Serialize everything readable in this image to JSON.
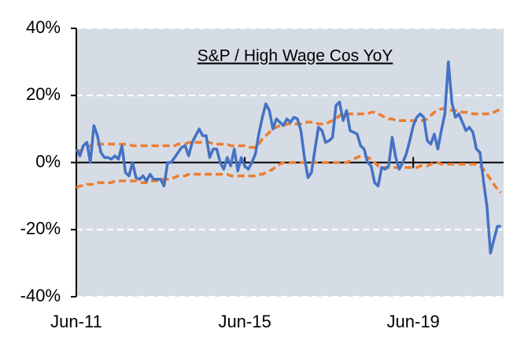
{
  "chart_data": {
    "type": "line",
    "title": "S&P / High Wage Cos YoY",
    "categories": [
      "Jun-11",
      null,
      null,
      null,
      null,
      null,
      null,
      null,
      null,
      null,
      null,
      null,
      null,
      null,
      null,
      null,
      null,
      null,
      null,
      null,
      null,
      null,
      null,
      null,
      null,
      null,
      null,
      null,
      null,
      null,
      null,
      null,
      null,
      null,
      null,
      null,
      null,
      null,
      null,
      null,
      null,
      null,
      null,
      null,
      null,
      null,
      null,
      null,
      "Jun-15",
      null,
      null,
      null,
      null,
      null,
      null,
      null,
      null,
      null,
      null,
      null,
      null,
      null,
      null,
      null,
      null,
      null,
      null,
      null,
      null,
      null,
      null,
      null,
      null,
      null,
      null,
      null,
      null,
      null,
      null,
      null,
      null,
      null,
      null,
      null,
      null,
      null,
      null,
      null,
      null,
      null,
      null,
      null,
      null,
      null,
      null,
      null,
      "Jun-19",
      null,
      null,
      null,
      null,
      null,
      null,
      null,
      null,
      null,
      null,
      null,
      null,
      null,
      null,
      null,
      null,
      null,
      null,
      null,
      null,
      null,
      null,
      null,
      null,
      null
    ],
    "series": [
      {
        "color": "#4472c4",
        "dashed": false,
        "values": [
          4,
          2,
          5,
          6,
          0,
          11,
          8,
          3,
          1.5,
          1.5,
          1,
          2,
          1,
          5,
          -3,
          -4,
          0,
          -4.5,
          -5,
          -4,
          -5.5,
          -3.5,
          -5,
          -5,
          -5,
          -7,
          0,
          0,
          1.5,
          3,
          4.5,
          5,
          2,
          6,
          8,
          10,
          8,
          8,
          1.5,
          4,
          4,
          0,
          -2,
          1.5,
          -1,
          4,
          -2.5,
          1.5,
          -1,
          -2,
          0,
          2.5,
          8.5,
          13.5,
          17.5,
          15.5,
          10,
          13,
          12,
          11,
          13,
          12,
          13.5,
          13,
          9.5,
          1.5,
          -4.5,
          -3,
          4,
          10.5,
          9.5,
          6,
          6.5,
          7.5,
          17,
          18,
          12.5,
          15.5,
          9.5,
          9,
          8.5,
          5,
          4,
          0,
          -1,
          -6,
          -7,
          -1.5,
          -2,
          -1,
          7.5,
          1.5,
          -2,
          0,
          2.5,
          6.5,
          11,
          13.5,
          14.5,
          13.5,
          6.5,
          5.5,
          8.5,
          4,
          9.5,
          14.5,
          30,
          18,
          13.5,
          14.5,
          12,
          9.5,
          10.5,
          9,
          4,
          3,
          -5.5,
          -13,
          -27,
          -23,
          -19,
          -19
        ]
      },
      {
        "color": "#ed7d31",
        "dashed": true,
        "values": [
          3.5,
          3.5,
          4,
          4.5,
          5,
          5.5,
          5.5,
          5.5,
          5.5,
          5.5,
          5.5,
          5.5,
          5.5,
          5.5,
          5.5,
          5.5,
          5,
          5,
          5,
          5,
          5,
          5,
          5,
          5,
          5,
          5,
          5,
          5,
          5,
          5.5,
          5.5,
          5.5,
          6,
          6,
          6,
          6,
          6,
          6,
          6,
          5.5,
          5.5,
          5.5,
          5.5,
          5.5,
          5,
          5,
          5,
          5,
          5,
          4.5,
          4.5,
          4.5,
          5.5,
          7,
          8,
          9,
          10,
          10.5,
          11,
          11,
          11.5,
          11.5,
          11.5,
          11.5,
          11.5,
          12,
          12,
          12,
          12,
          11.5,
          11.5,
          11.5,
          12,
          12.5,
          13,
          14,
          14.5,
          14.5,
          14.5,
          14.5,
          14.5,
          14.5,
          14.5,
          14.5,
          15,
          15,
          14.5,
          14,
          13.5,
          13,
          13,
          12.5,
          12.5,
          12.5,
          12.5,
          12.5,
          12.5,
          12.5,
          12.5,
          12.5,
          13,
          14,
          15,
          15.5,
          16,
          16,
          16,
          15.5,
          15.5,
          15.5,
          15,
          15,
          15,
          14.5,
          14.5,
          14.5,
          14.5,
          14.5,
          14.5,
          15,
          15.5,
          16
        ]
      },
      {
        "color": "#ed7d31",
        "dashed": true,
        "values": [
          -7.5,
          -7,
          -7,
          -6.5,
          -6.5,
          -6.5,
          -6,
          -6,
          -6,
          -6,
          -6,
          -5.5,
          -5.5,
          -5.5,
          -5.5,
          -5.5,
          -5.5,
          -5.5,
          -6,
          -6,
          -6,
          -5.5,
          -5.5,
          -5.5,
          -5,
          -5,
          -5,
          -4.5,
          -4.5,
          -4,
          -4,
          -4,
          -3.5,
          -3.5,
          -3.5,
          -3.5,
          -3.5,
          -3.5,
          -3.5,
          -3.5,
          -3.5,
          -3.5,
          -3.5,
          -3.5,
          -4,
          -4,
          -4,
          -4,
          -4,
          -4,
          -4,
          -4,
          -3.5,
          -3.5,
          -3,
          -2.5,
          -2,
          -1,
          -0.5,
          0,
          0,
          0,
          0,
          0,
          0,
          0,
          0,
          0,
          0,
          0,
          0,
          0,
          0,
          0,
          0,
          0,
          0,
          0,
          0.5,
          1,
          1.5,
          2,
          2,
          1.5,
          1,
          0,
          -1,
          -1.5,
          -1.5,
          -1.5,
          -1.5,
          -1.5,
          -1.5,
          -1.5,
          -1.5,
          -1.5,
          -1.5,
          -1.5,
          -1,
          -1,
          -1,
          -0.5,
          0,
          0,
          -0.5,
          -0.5,
          -0.5,
          -0.5,
          -0.5,
          -0.5,
          -0.5,
          -0.5,
          -0.5,
          -0.5,
          -0.5,
          -1,
          -2,
          -3.5,
          -5,
          -6.5,
          -8,
          -9
        ]
      }
    ],
    "ylim": [
      -40,
      40
    ],
    "yticks": [
      {
        "value": -40,
        "label": "-40%"
      },
      {
        "value": -20,
        "label": "-20%"
      },
      {
        "value": 0,
        "label": "0%"
      },
      {
        "value": 20,
        "label": "20%"
      },
      {
        "value": 40,
        "label": "40%"
      }
    ],
    "grid": true
  }
}
